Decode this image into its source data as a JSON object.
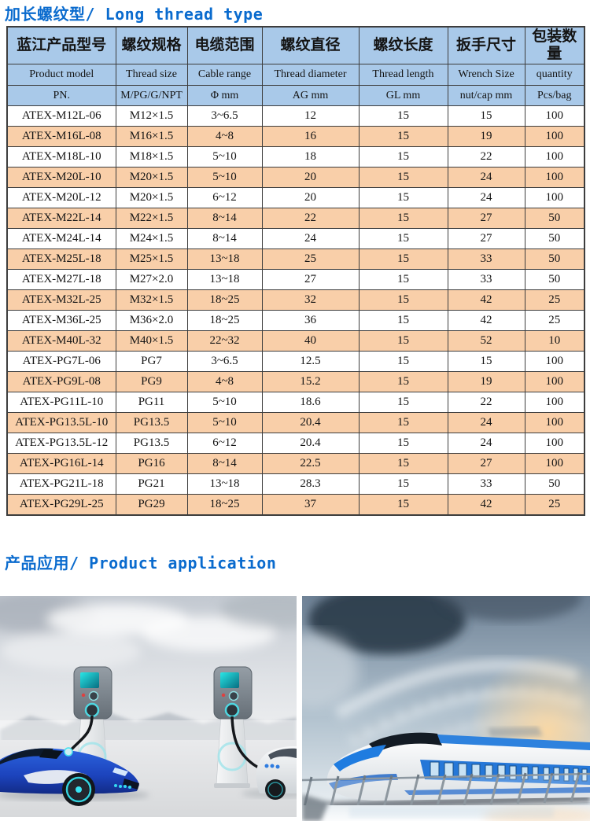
{
  "titles": {
    "products": "加长螺纹型/ Long thread type",
    "application": "产品应用/ Product application"
  },
  "table": {
    "columns": [
      {
        "cn": "蓝江产品型号",
        "en": "Product model",
        "unit": "PN."
      },
      {
        "cn": "螺纹规格",
        "en": "Thread size",
        "unit": "M/PG/G/NPT"
      },
      {
        "cn": "电缆范围",
        "en": "Cable range",
        "unit": "Φ mm"
      },
      {
        "cn": "螺纹直径",
        "en": "Thread diameter",
        "unit": "AG mm"
      },
      {
        "cn": "螺纹长度",
        "en": "Thread length",
        "unit": "GL mm"
      },
      {
        "cn": "扳手尺寸",
        "en": "Wrench Size",
        "unit": "nut/cap mm"
      },
      {
        "cn": "包装数量",
        "en": "quantity",
        "unit": "Pcs/bag"
      }
    ],
    "rows": [
      [
        "ATEX-M12L-06",
        "M12×1.5",
        "3~6.5",
        "12",
        "15",
        "15",
        "100"
      ],
      [
        "ATEX-M16L-08",
        "M16×1.5",
        "4~8",
        "16",
        "15",
        "19",
        "100"
      ],
      [
        "ATEX-M18L-10",
        "M18×1.5",
        "5~10",
        "18",
        "15",
        "22",
        "100"
      ],
      [
        "ATEX-M20L-10",
        "M20×1.5",
        "5~10",
        "20",
        "15",
        "24",
        "100"
      ],
      [
        "ATEX-M20L-12",
        "M20×1.5",
        "6~12",
        "20",
        "15",
        "24",
        "100"
      ],
      [
        "ATEX-M22L-14",
        "M22×1.5",
        "8~14",
        "22",
        "15",
        "27",
        "50"
      ],
      [
        "ATEX-M24L-14",
        "M24×1.5",
        "8~14",
        "24",
        "15",
        "27",
        "50"
      ],
      [
        "ATEX-M25L-18",
        "M25×1.5",
        "13~18",
        "25",
        "15",
        "33",
        "50"
      ],
      [
        "ATEX-M27L-18",
        "M27×2.0",
        "13~18",
        "27",
        "15",
        "33",
        "50"
      ],
      [
        "ATEX-M32L-25",
        "M32×1.5",
        "18~25",
        "32",
        "15",
        "42",
        "25"
      ],
      [
        "ATEX-M36L-25",
        "M36×2.0",
        "18~25",
        "36",
        "15",
        "42",
        "25"
      ],
      [
        "ATEX-M40L-32",
        "M40×1.5",
        "22~32",
        "40",
        "15",
        "52",
        "10"
      ],
      [
        "ATEX-PG7L-06",
        "PG7",
        "3~6.5",
        "12.5",
        "15",
        "15",
        "100"
      ],
      [
        "ATEX-PG9L-08",
        "PG9",
        "4~8",
        "15.2",
        "15",
        "19",
        "100"
      ],
      [
        "ATEX-PG11L-10",
        "PG11",
        "5~10",
        "18.6",
        "15",
        "22",
        "100"
      ],
      [
        "ATEX-PG13.5L-10",
        "PG13.5",
        "5~10",
        "20.4",
        "15",
        "24",
        "100"
      ],
      [
        "ATEX-PG13.5L-12",
        "PG13.5",
        "6~12",
        "20.4",
        "15",
        "24",
        "100"
      ],
      [
        "ATEX-PG16L-14",
        "PG16",
        "8~14",
        "22.5",
        "15",
        "27",
        "100"
      ],
      [
        "ATEX-PG21L-18",
        "PG21",
        "13~18",
        "28.3",
        "15",
        "33",
        "50"
      ],
      [
        "ATEX-PG29L-25",
        "PG29",
        "18~25",
        "37",
        "15",
        "42",
        "25"
      ]
    ]
  },
  "images": [
    {
      "name": "ev-charging-photo",
      "alt": "Electric cars at charging stations"
    },
    {
      "name": "high-speed-train-photo",
      "alt": "High-speed train in a station"
    }
  ],
  "colors": {
    "accent_blue": "#0a6bce",
    "header_bg": "#a9c9e9",
    "row_alt_bg": "#f9cfa9",
    "border": "#3d3d3d"
  }
}
